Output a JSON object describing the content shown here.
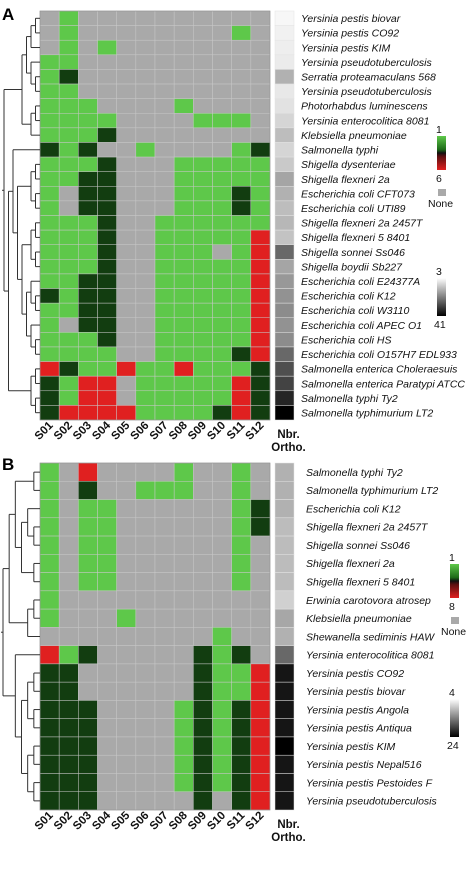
{
  "legend_title": [
    "Nbr.",
    "Ortho."
  ],
  "colors": {
    "green": "#5ec84a",
    "dark_green": "#123d10",
    "gray": "#a9a9a9",
    "red": "#e02020",
    "dark_red": "#330a0a"
  },
  "chart_data": [
    {
      "type": "heatmap",
      "panel": "A",
      "columns": [
        "S01",
        "S02",
        "S03",
        "S04",
        "S05",
        "S06",
        "S07",
        "S08",
        "S09",
        "S10",
        "S11",
        "S12"
      ],
      "rows": [
        "Yersinia pestis biovar",
        "Yersinia pestis CO92",
        "Yersinia pestis KIM",
        "Yersinia pseudotuberculosis",
        "Serratia proteamaculans 568",
        "Yersinia pseudotuberculosis",
        "Photorhabdus luminescens",
        "Yersinia enterocolitica 8081",
        "Klebsiella pneumoniae",
        "Salmonella typhi",
        "Shigella dysenteriae",
        "Shigella flexneri 2a",
        "Escherichia coli CFT073",
        "Escherichia coli UTI89",
        "Shigella flexneri 2a 2457T",
        "Shigella flexneri 5 8401",
        "Shigella sonnei Ss046",
        "Shigella boydii Sb227",
        "Escherichia coli E24377A",
        "Escherichia coli K12",
        "Escherichia coli W3110",
        "Escherichia coli APEC O1",
        "Escherichia coli HS",
        "Escherichia coli O157H7 EDL933",
        "Salmonella enterica Choleraesuis",
        "Salmonella enterica Paratypi ATCC",
        "Salmonella typhi Ty2",
        "Salmonella typhimurium LT2"
      ],
      "cells": [
        "GLGGGGGGGGGG",
        "GLGGGGGGGGLG",
        "GLGLGGGGGGGG",
        "LLGGGGGGGGGG",
        "LDGGGGGGGGGG",
        "LLGGGGGGGGGG",
        "LLLGGGGLGGGG",
        "LLLLGGGGLLLG",
        "LLLDGGGGGGGG",
        "DLDGGLGGGGLD",
        "LLLDGGGLLLLL",
        "LLDDGGGLLLLL",
        "LGDDGGGLLLDL",
        "LGDDGGGLLLDL",
        "LLLDGGLLLLLL",
        "LLLDGGLLLLLR",
        "LLLDGGLLLGLR",
        "LLLDGGLLLLLR",
        "LLDDGGLLLLLR",
        "DLDDGGLLLLLR",
        "LLDDGGLLLLLR",
        "LGDDGGLLLLLR",
        "LLLDGGLLLLLR",
        "LLLLGGLLLLDR",
        "RDLLRLLRLLLD",
        "DLRRGLLLLLRD",
        "DLRRGLLLLLRD",
        "DRRRRLLLLDRD"
      ],
      "ortho": [
        0.5,
        1.5,
        2,
        2.5,
        12,
        3,
        4,
        6,
        10,
        6,
        8,
        14,
        12,
        10,
        11,
        9,
        24,
        14,
        16,
        17,
        18,
        17,
        18,
        24,
        28,
        30,
        35,
        41
      ],
      "scale_green": [
        "1",
        "6"
      ],
      "scale_none": "None",
      "scale_gray": [
        "3",
        "41"
      ]
    },
    {
      "type": "heatmap",
      "panel": "B",
      "columns": [
        "S01",
        "S02",
        "S03",
        "S04",
        "S05",
        "S06",
        "S07",
        "S08",
        "S09",
        "S10",
        "S11",
        "S12"
      ],
      "rows": [
        "Salmonella typhi Ty2",
        "Salmonella typhimurium LT2",
        "Escherichia coli K12",
        "Shigella flexneri 2a 2457T",
        "Shigella sonnei Ss046",
        "Shigella flexneri 2a",
        "Shigella flexneri 5 8401",
        "Erwinia carotovora atrosep",
        "Klebsiella pneumoniae",
        "Shewanella sediminis HAW",
        "Yersinia enterocolitica 8081",
        "Yersinia pestis CO92",
        "Yersinia pestis biovar",
        "Yersinia pestis Angola",
        "Yersinia pestis Antiqua",
        "Yersinia pestis KIM",
        "Yersinia pestis Nepal516",
        "Yersinia pestis Pestoides F",
        "Yersinia pseudotuberculosis"
      ],
      "cells": [
        "LGRGGGGLGGLG",
        "LGDGGLLLGGLG",
        "LGLLGGGGGGLD",
        "LGLLGGGGGGLD",
        "LGLLGGGGGGLG",
        "LGLLGGGGGGLG",
        "LGLLGGGGGGLG",
        "LGGGGGGGGGGG",
        "LGGGLGGGGGGG",
        "GGGGGGGGGLGG",
        "RLDGGGGGDLDG",
        "DDGGGGGGDLLR",
        "DDGGGGGGDLLR",
        "DDDGGGGLDLDR",
        "DDDGGGGLDLDR",
        "DDDGGGGLDLDR",
        "DDDGGGGLDLDR",
        "DDDGGGGLDLDR",
        "DDDGGGGGDGDR"
      ],
      "ortho": [
        7,
        7,
        7,
        6,
        6,
        6,
        6,
        4,
        8,
        7,
        14,
        22,
        22,
        22,
        22,
        24,
        22,
        22,
        22
      ],
      "scale_green": [
        "1",
        "8"
      ],
      "scale_none": "None",
      "scale_gray": [
        "4",
        "24"
      ]
    }
  ]
}
